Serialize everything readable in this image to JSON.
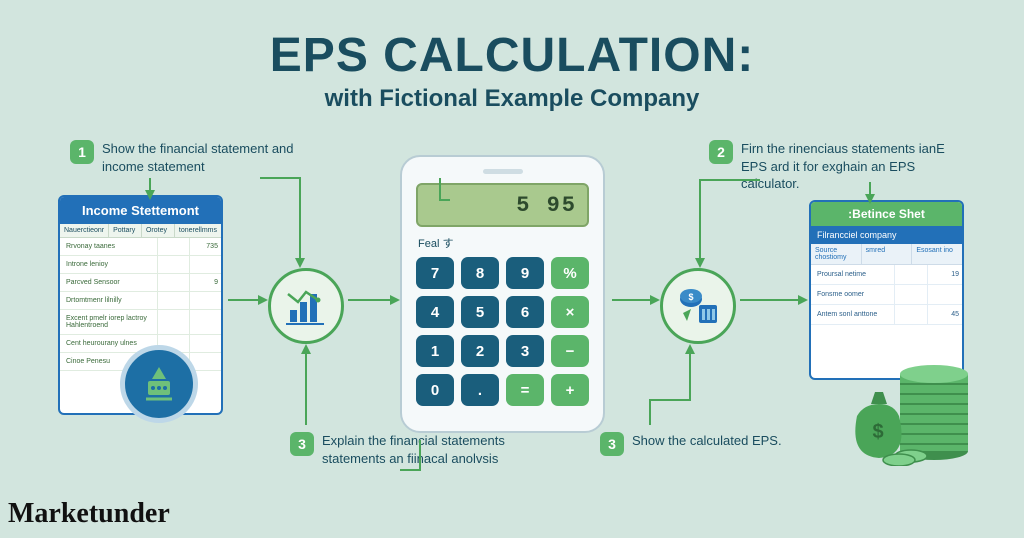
{
  "colors": {
    "background": "#d2e5de",
    "primary_text": "#1a4d5f",
    "badge": "#5bb56a",
    "blue": "#2270b8",
    "key_blue": "#1a5e7c",
    "key_green": "#5bb56a",
    "screen_bg": "#a9c98e",
    "connector": "#4aa558"
  },
  "title": {
    "main": "EPS CALCULATION:",
    "sub": "with Fictional Example Company"
  },
  "steps": {
    "s1": {
      "num": "1",
      "text": "Show the financial statement and income statement"
    },
    "s2": {
      "num": "2",
      "text": "Firn the rinenciaus statements ianE EPS ard it for exghain an EPS calculator."
    },
    "s3a": {
      "num": "3",
      "text": "Explain the financial statements statements an fiinacal anolvsis"
    },
    "s3b": {
      "num": "3",
      "text": "Show the calculated EPS."
    }
  },
  "income": {
    "header": "Income Stettemont",
    "cols": [
      "Nauerctieonr",
      "Pottary",
      "Orotey",
      "tonerellmms"
    ],
    "rows": [
      {
        "label": "Rrvonay taanes",
        "v1": "",
        "v2": "735"
      },
      {
        "label": "Introne lenioy",
        "v1": "",
        "v2": ""
      },
      {
        "label": "Parcved Sensoor",
        "v1": "",
        "v2": "9"
      },
      {
        "label": "Drtomtmenr lilnilly",
        "v1": "",
        "v2": ""
      },
      {
        "label": "Excent pmelr iorep lactroy Hahlentroend",
        "v1": "",
        "v2": ""
      },
      {
        "label": "Cent heurourany ulnes",
        "v1": "",
        "v2": ""
      },
      {
        "label": "Cinoe Penesu",
        "v1": "",
        "v2": ""
      }
    ]
  },
  "calculator": {
    "screen": "5 95",
    "label": "Feal す",
    "keys": [
      {
        "t": "7",
        "c": "blue"
      },
      {
        "t": "8",
        "c": "blue"
      },
      {
        "t": "9",
        "c": "blue"
      },
      {
        "t": "%",
        "c": "green"
      },
      {
        "t": "4",
        "c": "blue"
      },
      {
        "t": "5",
        "c": "blue"
      },
      {
        "t": "6",
        "c": "blue"
      },
      {
        "t": "×",
        "c": "green"
      },
      {
        "t": "1",
        "c": "blue"
      },
      {
        "t": "2",
        "c": "blue"
      },
      {
        "t": "3",
        "c": "blue"
      },
      {
        "t": "−",
        "c": "green"
      },
      {
        "t": "0",
        "c": "blue"
      },
      {
        "t": ".",
        "c": "blue"
      },
      {
        "t": "=",
        "c": "green"
      },
      {
        "t": "+",
        "c": "green"
      }
    ]
  },
  "balance": {
    "header": ":Betince Shet",
    "sub": "Filrancciel company",
    "cols": [
      "Source chostiomy",
      "smred",
      "Esosant ino"
    ],
    "rows": [
      {
        "label": "Proursal netime",
        "v1": "",
        "v2": "19"
      },
      {
        "label": "Fonsme oomer",
        "v1": "",
        "v2": ""
      },
      {
        "label": "Antem sonl anttone",
        "v1": "",
        "v2": "45"
      }
    ]
  },
  "attribution": "Marketunder"
}
